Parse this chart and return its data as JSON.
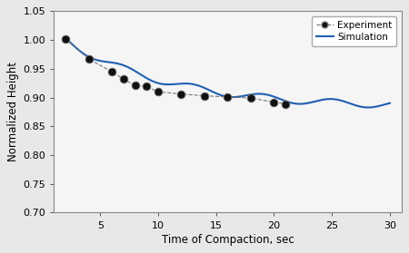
{
  "experiment_x": [
    2,
    4,
    6,
    7,
    8,
    9,
    10,
    12,
    14,
    16,
    18,
    20,
    21
  ],
  "experiment_y": [
    1.002,
    0.967,
    0.945,
    0.932,
    0.921,
    0.919,
    0.91,
    0.906,
    0.903,
    0.901,
    0.899,
    0.892,
    0.889
  ],
  "xlim": [
    1,
    31
  ],
  "ylim": [
    0.7,
    1.05
  ],
  "xlabel": "Time of Compaction, sec",
  "ylabel": "Normalized Height",
  "xticks": [
    5,
    10,
    15,
    20,
    25,
    30
  ],
  "yticks": [
    0.7,
    0.75,
    0.8,
    0.85,
    0.9,
    0.95,
    1.0,
    1.05
  ],
  "sim_color": "#2060b0",
  "exp_marker_face": "#111111",
  "legend_labels": [
    "Experiment",
    "Simulation"
  ],
  "figsize": [
    4.5,
    2.79
  ],
  "dpi": 100
}
